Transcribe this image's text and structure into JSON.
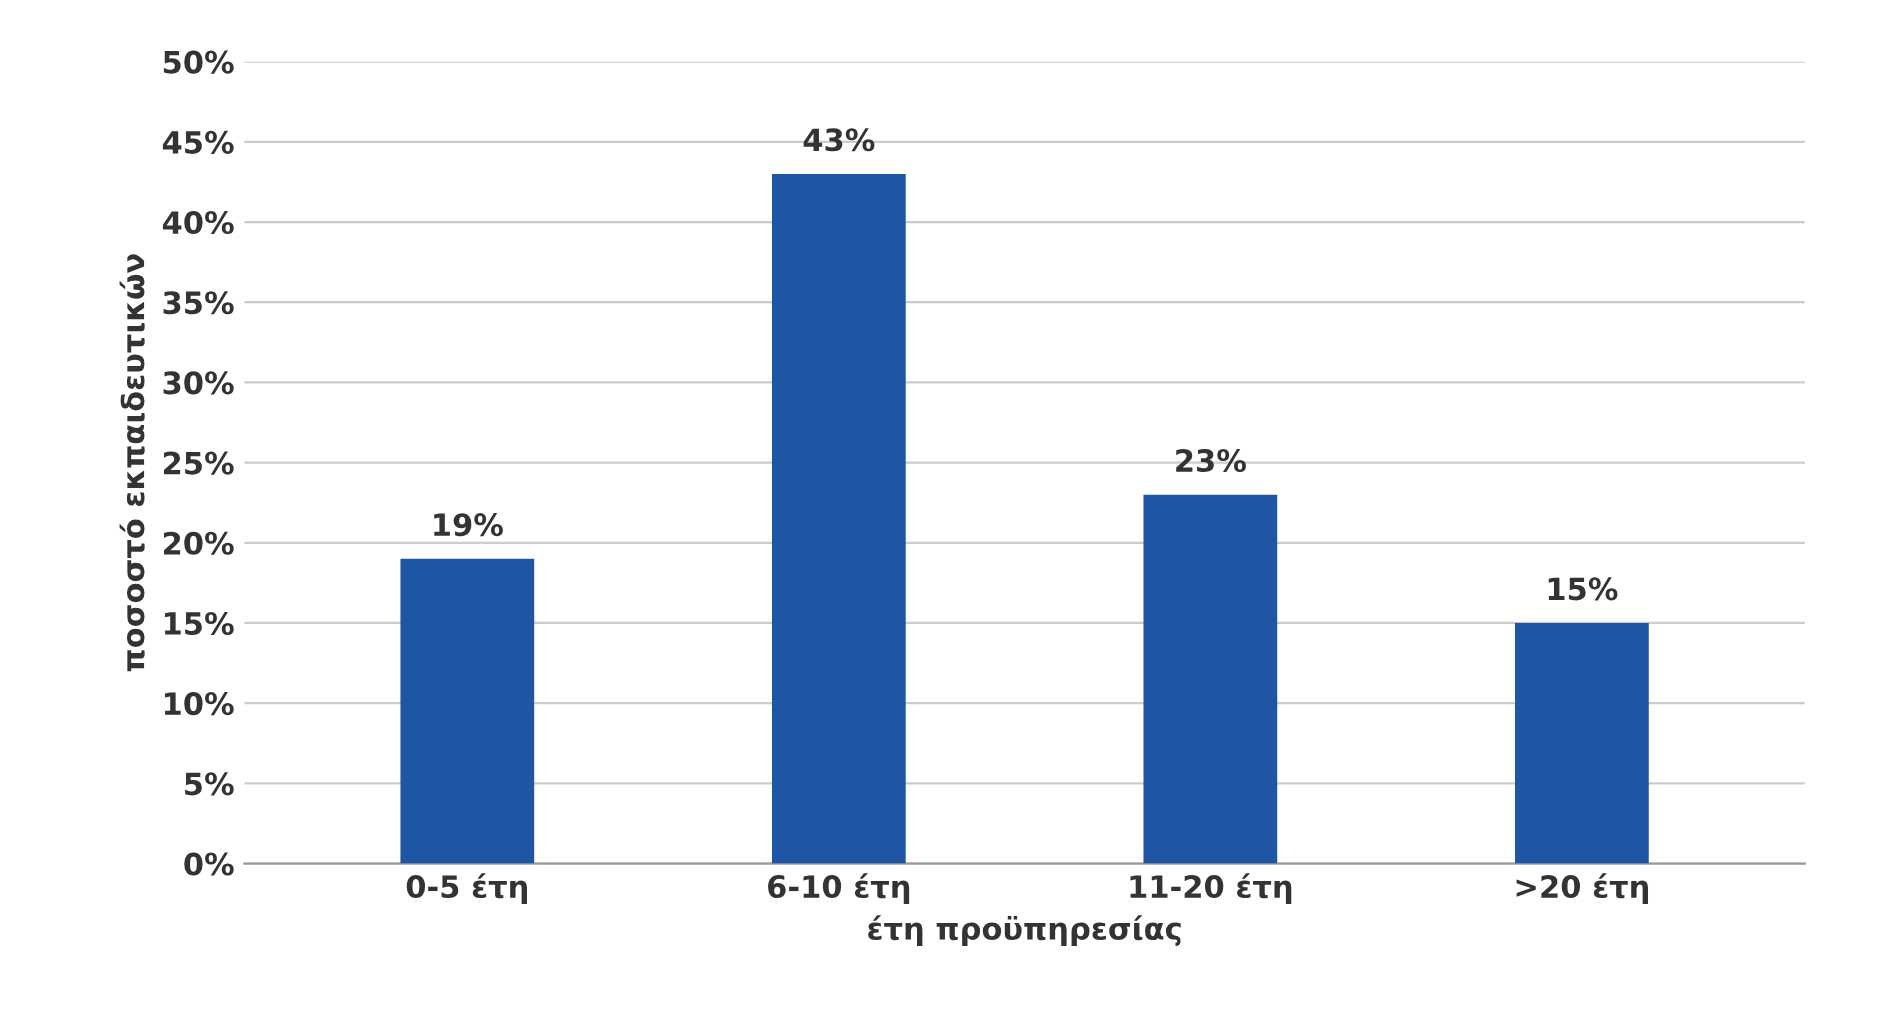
{
  "chart_data": {
    "type": "bar",
    "xlabel": "έτη προϋπηρεσίας",
    "ylabel": "ποσοστό εκπαιδευτικών",
    "categories": [
      "0-5 έτη",
      "6-10 έτη",
      "11-20 έτη",
      ">20 έτη"
    ],
    "values": [
      19,
      43,
      23,
      15
    ],
    "color": "#1f55a5",
    "value_labels": [
      "19%",
      "43%",
      "23%",
      "15%"
    ],
    "ylim": [
      0,
      50
    ],
    "yticks": [
      {
        "value": 0,
        "label": "0%"
      },
      {
        "value": 5,
        "label": "5%"
      },
      {
        "value": 10,
        "label": "10%"
      },
      {
        "value": 15,
        "label": "15%"
      },
      {
        "value": 20,
        "label": "20%"
      },
      {
        "value": 25,
        "label": "25%"
      },
      {
        "value": 30,
        "label": "30%"
      },
      {
        "value": 35,
        "label": "35%"
      },
      {
        "value": 40,
        "label": "40%"
      },
      {
        "value": 45,
        "label": "45%"
      },
      {
        "value": 50,
        "label": "50%"
      }
    ],
    "grid": "y",
    "legend": false
  }
}
